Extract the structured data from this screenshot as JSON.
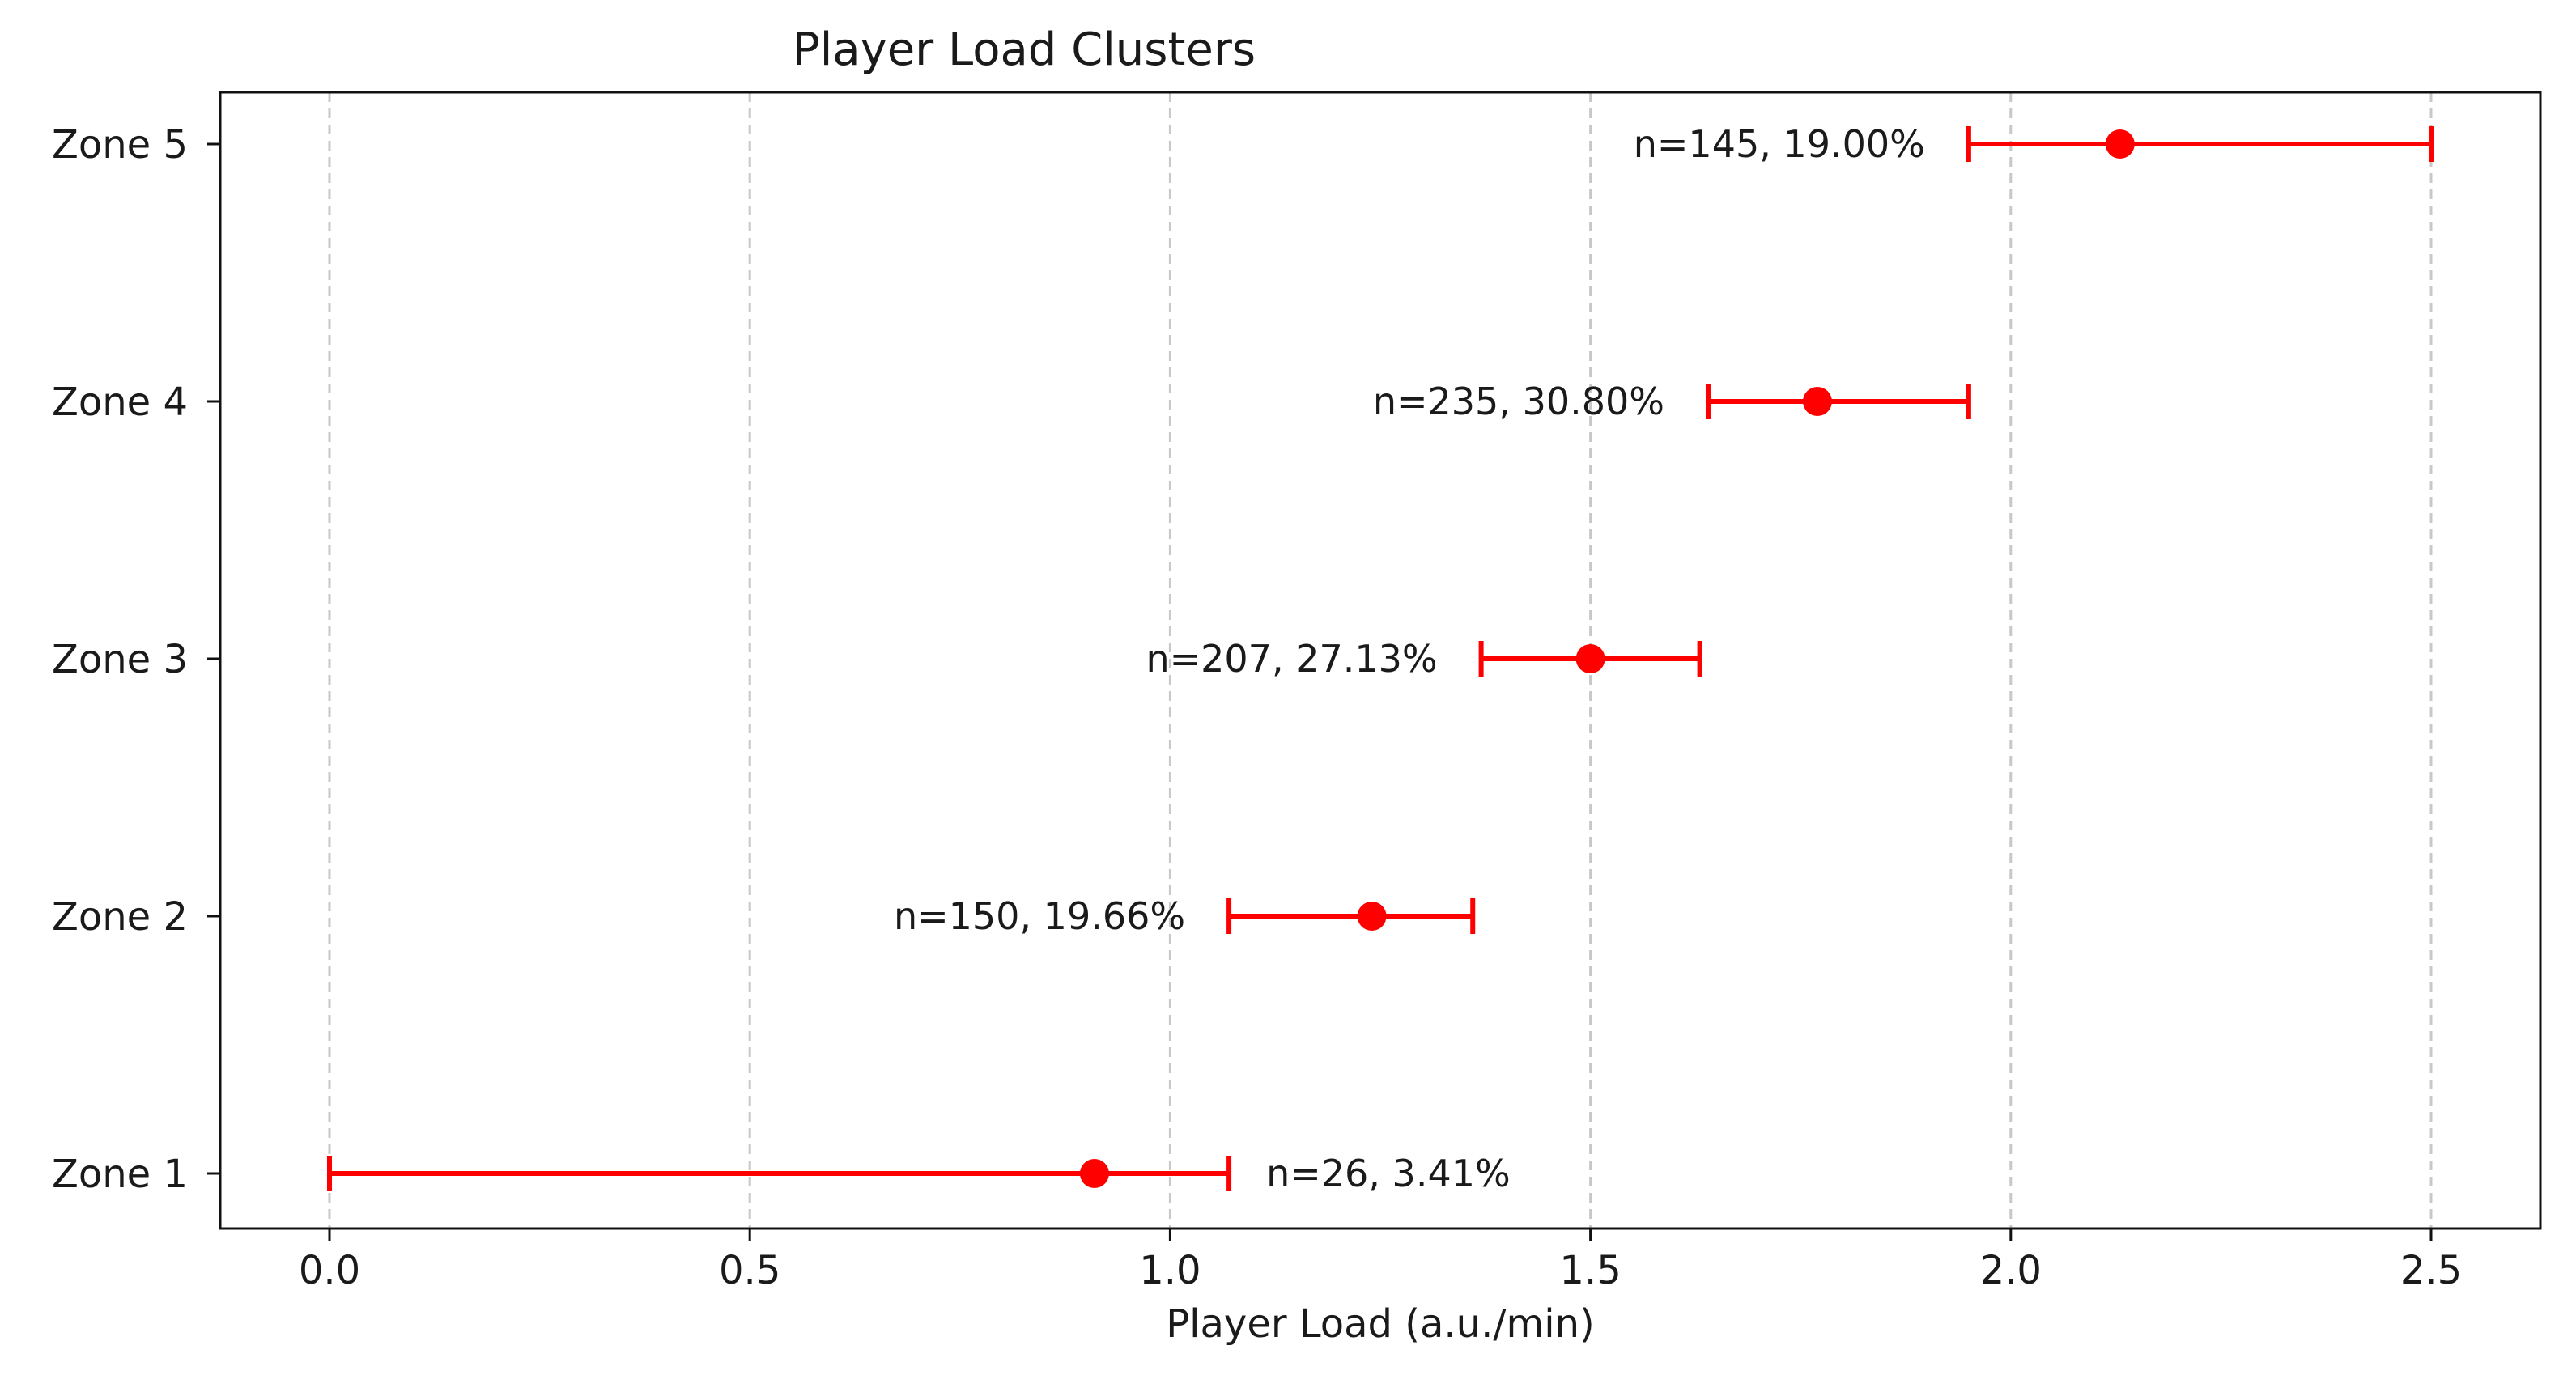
{
  "chart_data": {
    "type": "errorbar",
    "orientation": "horizontal",
    "title": "Player Load Clusters",
    "xlabel": "Player Load (a.u./min)",
    "ylabel": "",
    "xlim": [
      -0.13,
      2.63
    ],
    "xticks": [
      0.0,
      0.5,
      1.0,
      1.5,
      2.0,
      2.5
    ],
    "xtick_labels": [
      "0.0",
      "0.5",
      "1.0",
      "1.5",
      "2.0",
      "2.5"
    ],
    "categories": [
      "Zone 1",
      "Zone 2",
      "Zone 3",
      "Zone 4",
      "Zone 5"
    ],
    "grid": "vertical-dashed",
    "color": "#ff0000",
    "points": [
      {
        "zone": "Zone 1",
        "center": 0.91,
        "low": 0.0,
        "high": 1.07,
        "label": "n=26, 3.41%",
        "label_side": "right"
      },
      {
        "zone": "Zone 2",
        "center": 1.24,
        "low": 1.07,
        "high": 1.36,
        "label": "n=150, 19.66%",
        "label_side": "left"
      },
      {
        "zone": "Zone 3",
        "center": 1.5,
        "low": 1.37,
        "high": 1.63,
        "label": "n=207, 27.13%",
        "label_side": "left"
      },
      {
        "zone": "Zone 4",
        "center": 1.77,
        "low": 1.64,
        "high": 1.95,
        "label": "n=235, 30.80%",
        "label_side": "left"
      },
      {
        "zone": "Zone 5",
        "center": 2.13,
        "low": 1.95,
        "high": 2.5,
        "label": "n=145, 19.00%",
        "label_side": "left"
      }
    ]
  }
}
